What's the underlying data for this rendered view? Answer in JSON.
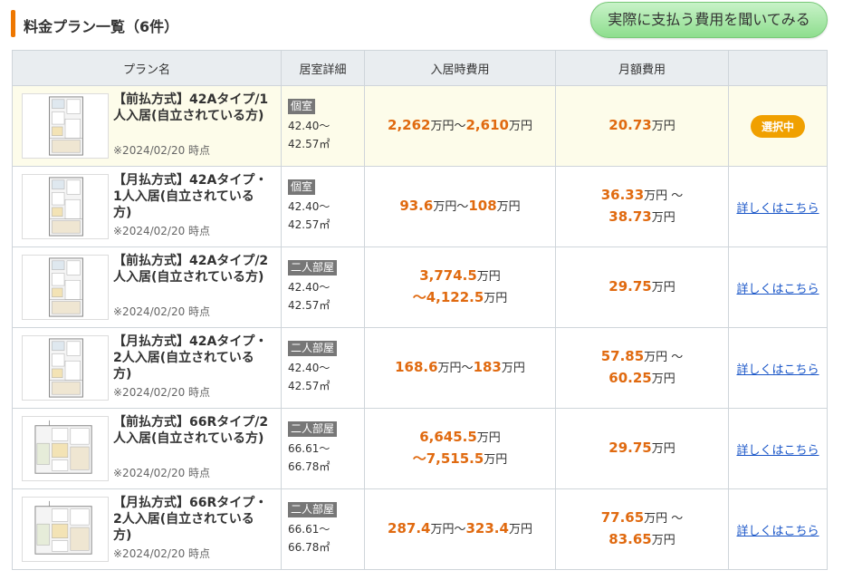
{
  "header": {
    "title": "料金プラン一覧（6件）",
    "ask_button": "実際に支払う費用を聞いてみる"
  },
  "columns": [
    "プラン名",
    "居室詳細",
    "入居時費用",
    "月額費用",
    ""
  ],
  "colors": {
    "accent": "#ee7700",
    "price": "#e06a10",
    "link": "#1a56c8",
    "badge": "#f0a000"
  },
  "plans": [
    {
      "name": "【前払方式】42Aタイプ/1人入居(自立されている方)",
      "date": "※2024/02/20 時点",
      "room_type": "個室",
      "area_from": "42.40～",
      "area_to": "42.57㎡",
      "entry": {
        "l1": [
          [
            "2,262",
            "万円～"
          ],
          [
            "2,610",
            "万円"
          ]
        ],
        "l2": []
      },
      "monthly": {
        "l1": [
          [
            "20.73",
            "万円"
          ]
        ],
        "l2": []
      },
      "action": {
        "type": "selected",
        "label": "選択中"
      }
    },
    {
      "name": "【月払方式】42Aタイプ・1人入居(自立されている方)",
      "date": "※2024/02/20 時点",
      "room_type": "個室",
      "area_from": "42.40～",
      "area_to": "42.57㎡",
      "entry": {
        "l1": [
          [
            "93.6",
            "万円～"
          ],
          [
            "108",
            "万円"
          ]
        ],
        "l2": []
      },
      "monthly": {
        "l1": [
          [
            "36.33",
            "万円 ～"
          ]
        ],
        "l2": [
          [
            "38.73",
            "万円"
          ]
        ]
      },
      "action": {
        "type": "link",
        "label": "詳しくはこちら"
      }
    },
    {
      "name": "【前払方式】42Aタイプ/2人入居(自立されている方)",
      "date": "※2024/02/20 時点",
      "room_type": "二人部屋",
      "area_from": "42.40～",
      "area_to": "42.57㎡",
      "entry": {
        "l1": [
          [
            "3,774.5",
            "万円"
          ]
        ],
        "l2": [
          [
            "～4,122.5",
            "万円"
          ]
        ]
      },
      "monthly": {
        "l1": [
          [
            "29.75",
            "万円"
          ]
        ],
        "l2": []
      },
      "action": {
        "type": "link",
        "label": "詳しくはこちら"
      }
    },
    {
      "name": "【月払方式】42Aタイプ・2人入居(自立されている方)",
      "date": "※2024/02/20 時点",
      "room_type": "二人部屋",
      "area_from": "42.40～",
      "area_to": "42.57㎡",
      "entry": {
        "l1": [
          [
            "168.6",
            "万円～"
          ],
          [
            "183",
            "万円"
          ]
        ],
        "l2": []
      },
      "monthly": {
        "l1": [
          [
            "57.85",
            "万円 ～"
          ]
        ],
        "l2": [
          [
            "60.25",
            "万円"
          ]
        ]
      },
      "action": {
        "type": "link",
        "label": "詳しくはこちら"
      }
    },
    {
      "name": "【前払方式】66Rタイプ/2人入居(自立されている方)",
      "date": "※2024/02/20 時点",
      "room_type": "二人部屋",
      "area_from": "66.61～",
      "area_to": "66.78㎡",
      "entry": {
        "l1": [
          [
            "6,645.5",
            "万円"
          ]
        ],
        "l2": [
          [
            "～7,515.5",
            "万円"
          ]
        ]
      },
      "monthly": {
        "l1": [
          [
            "29.75",
            "万円"
          ]
        ],
        "l2": []
      },
      "action": {
        "type": "link",
        "label": "詳しくはこちら"
      }
    },
    {
      "name": "【月払方式】66Rタイプ・2人入居(自立されている方)",
      "date": "※2024/02/20 時点",
      "room_type": "二人部屋",
      "area_from": "66.61～",
      "area_to": "66.78㎡",
      "entry": {
        "l1": [
          [
            "287.4",
            "万円～"
          ],
          [
            "323.4",
            "万円"
          ]
        ],
        "l2": []
      },
      "monthly": {
        "l1": [
          [
            "77.65",
            "万円 ～"
          ]
        ],
        "l2": [
          [
            "83.65",
            "万円"
          ]
        ]
      },
      "action": {
        "type": "link",
        "label": "詳しくはこちら"
      }
    }
  ]
}
